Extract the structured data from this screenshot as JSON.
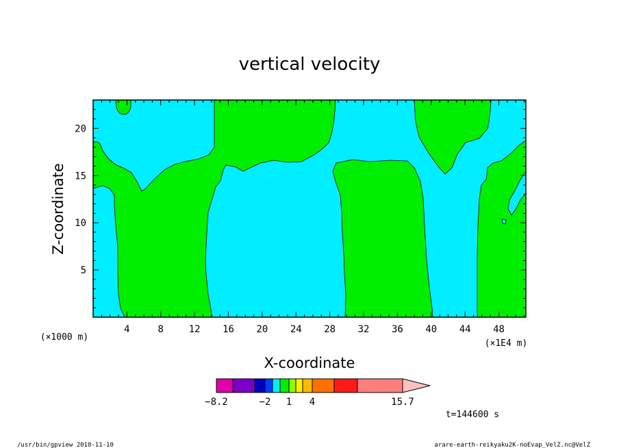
{
  "chart_data": {
    "type": "contour",
    "title": "vertical velocity",
    "xlabel": "X-coordinate",
    "ylabel": "Z-coordinate",
    "x_unit_label": "(×1E4 m)",
    "y_unit_label": "(×1000 m)",
    "x_ticks": [
      4,
      8,
      12,
      16,
      20,
      24,
      28,
      32,
      36,
      40,
      44,
      48
    ],
    "y_ticks": [
      5,
      10,
      15,
      20
    ],
    "xlim": [
      0,
      51.2
    ],
    "ylim": [
      0,
      23
    ],
    "regions": [
      {
        "name": "negative",
        "color": "#00eeff"
      },
      {
        "name": "positive",
        "color": "#00ee00"
      }
    ],
    "colorbar": {
      "colors": [
        "#e000a8",
        "#7b00c8",
        "#0000c0",
        "#0040ff",
        "#00eeff",
        "#00ee00",
        "#8cff00",
        "#ffee00",
        "#ffbb00",
        "#ff7000",
        "#ff1a1a",
        "#ff7f7f",
        "#ffc0c0"
      ],
      "tick_labels": [
        "−8.2",
        "−2",
        "1",
        "4",
        "15.7"
      ]
    },
    "time_label": "t=144600 s"
  },
  "footer": {
    "left": "/usr/bin/gpview  2010-11-10",
    "right": "arare-earth-reikyaku2K-noEvap_VelZ.nc@VelZ"
  }
}
